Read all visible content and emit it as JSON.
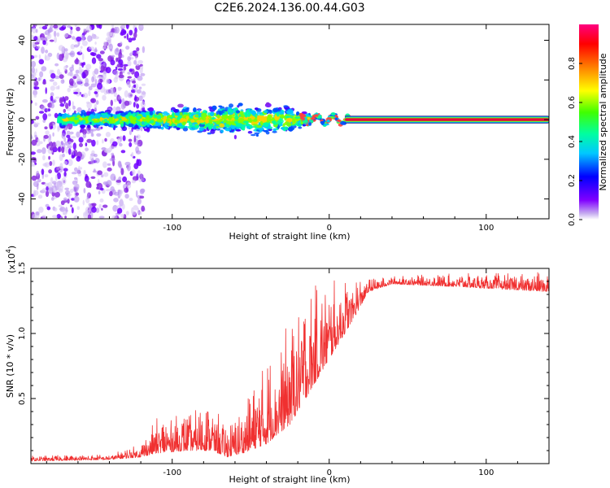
{
  "title": "C2E6.2024.136.00.44.G03",
  "chart_data": [
    {
      "type": "heatmap",
      "xlabel": "Height of straight line (km)",
      "ylabel": "Frequency (Hz)",
      "xlim": [
        -190,
        140
      ],
      "ylim": [
        -50,
        48
      ],
      "xticks": [
        -100,
        0,
        100
      ],
      "yticks": [
        -40,
        -20,
        0,
        20,
        40
      ],
      "colorbar": {
        "label": "Normalized spectral amplitude",
        "range": [
          0,
          1
        ],
        "ticks": [
          "0.0",
          "0.2",
          "0.4",
          "0.6",
          "0.8"
        ],
        "colormap": "rainbow (violet to red)"
      },
      "band": {
        "center_frequency_hz": 0,
        "description": "scattered violet noise below about -125 km, broad blue/green band from -170 to -20 km, narrow red-cored line at 0 Hz from 10 km to 140 km",
        "half_width_hz": [
          {
            "x": -170,
            "w": 4
          },
          {
            "x": -120,
            "w": 6
          },
          {
            "x": -80,
            "w": 8
          },
          {
            "x": -50,
            "w": 10
          },
          {
            "x": -25,
            "w": 8
          },
          {
            "x": -15,
            "w": 4
          },
          {
            "x": 10,
            "w": 1.5
          },
          {
            "x": 140,
            "w": 1.5
          }
        ]
      },
      "grid": false
    },
    {
      "type": "line",
      "xlabel": "Height of straight line (km)",
      "ylabel": "SNR (10 * v/v)",
      "multiplier_label": "(x10",
      "multiplier_exp": "4",
      "xlim": [
        -190,
        140
      ],
      "ylim": [
        0,
        15000
      ],
      "xticks": [
        -100,
        0,
        100
      ],
      "yticks": [
        5000,
        10000,
        15000
      ],
      "ytick_labels": [
        "0.5",
        "1.0",
        "1.5"
      ],
      "series": [
        {
          "color": "#f03030",
          "envelope": [
            {
              "x": -190,
              "base": 200,
              "peak": 600
            },
            {
              "x": -140,
              "base": 300,
              "peak": 700
            },
            {
              "x": -120,
              "base": 500,
              "peak": 1500
            },
            {
              "x": -110,
              "base": 800,
              "peak": 3500
            },
            {
              "x": -90,
              "base": 1000,
              "peak": 3800
            },
            {
              "x": -75,
              "base": 1000,
              "peak": 4800
            },
            {
              "x": -65,
              "base": 500,
              "peak": 3000
            },
            {
              "x": -55,
              "base": 800,
              "peak": 4200
            },
            {
              "x": -40,
              "base": 1500,
              "peak": 8000
            },
            {
              "x": -25,
              "base": 3000,
              "peak": 11000
            },
            {
              "x": -15,
              "base": 5000,
              "peak": 13500
            },
            {
              "x": 0,
              "base": 8000,
              "peak": 14000
            },
            {
              "x": 15,
              "base": 11000,
              "peak": 14500
            },
            {
              "x": 25,
              "base": 13200,
              "peak": 14200
            },
            {
              "x": 40,
              "base": 13800,
              "peak": 14400
            },
            {
              "x": 80,
              "base": 13600,
              "peak": 14600
            },
            {
              "x": 140,
              "base": 13200,
              "peak": 14700
            }
          ]
        }
      ],
      "grid": false
    }
  ],
  "colors": {
    "line": "#f03030",
    "band_core": "#e8003c"
  }
}
